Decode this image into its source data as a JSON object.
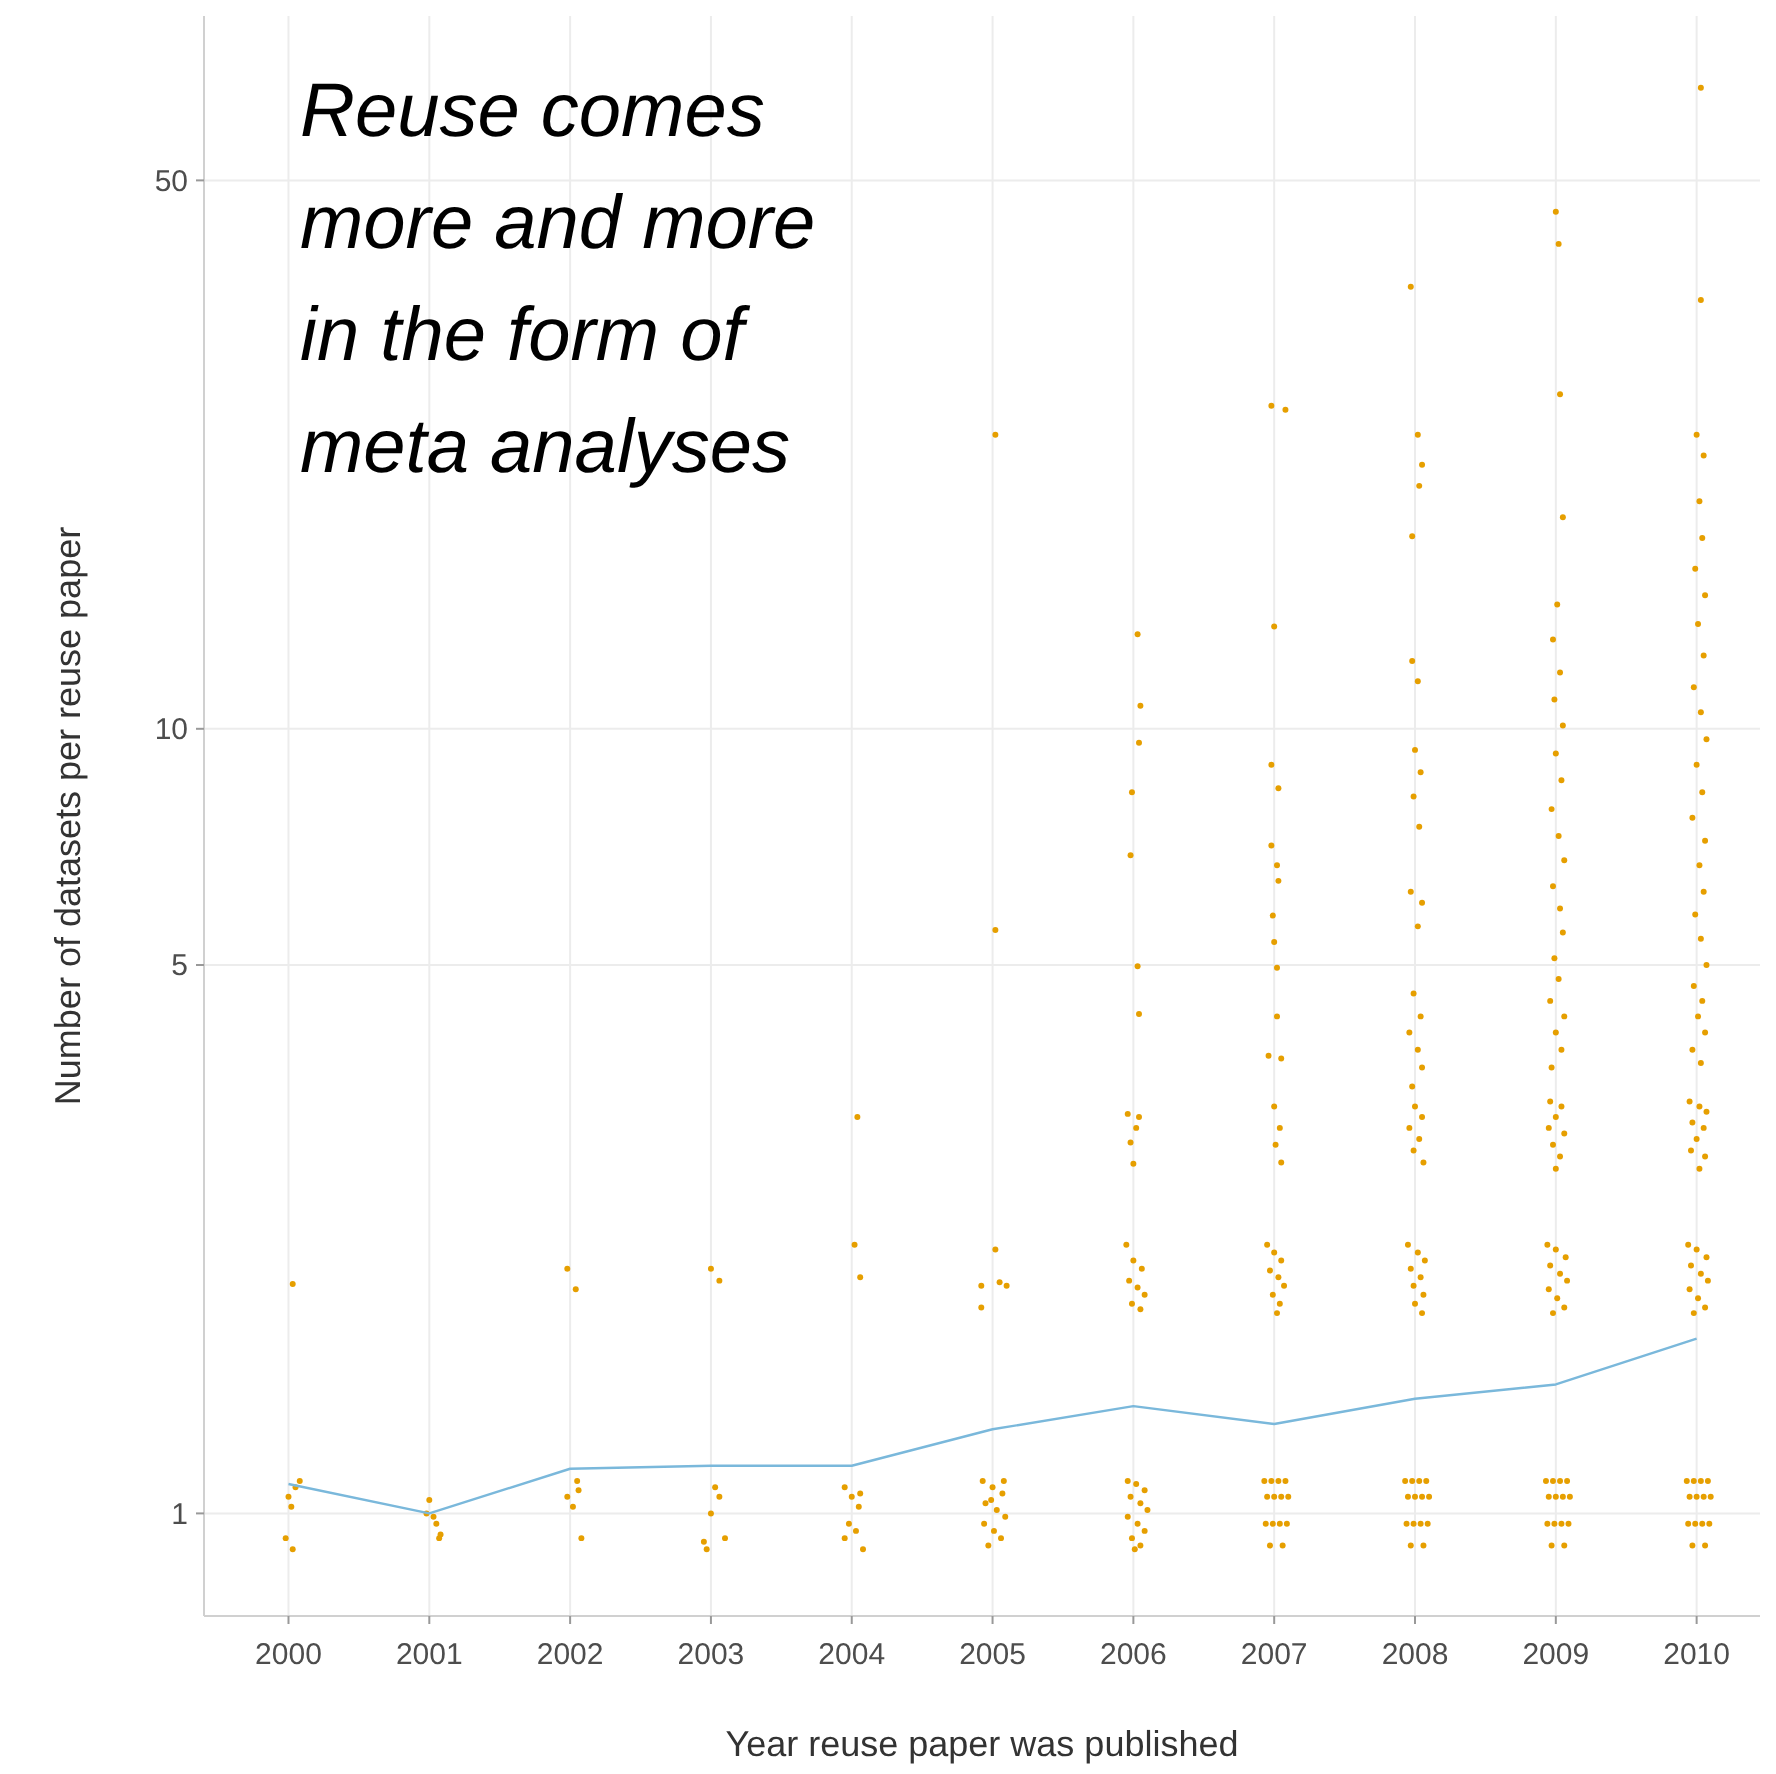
{
  "chart_data": {
    "type": "scatter",
    "xlabel": "Year reuse paper was published",
    "ylabel": "Number of datasets per reuse paper",
    "log": "y",
    "grid": true,
    "xlim": [
      1999.4,
      2010.45
    ],
    "ylim": [
      0.74,
      81
    ],
    "xticks": [
      2000,
      2001,
      2002,
      2003,
      2004,
      2005,
      2006,
      2007,
      2008,
      2009,
      2010
    ],
    "yticks": [
      1,
      5,
      10,
      50
    ],
    "annotations": [
      "Reuse comes more and more in the form of meta analyses"
    ],
    "series": [
      {
        "marker": "circle",
        "color": "#e69f00",
        "x": [
          2000.0,
          2000.05,
          2000.02,
          2000.08,
          1999.98,
          2000.03,
          2000.03,
          2001.0,
          2001.05,
          2001.08,
          2001.03,
          2000.98,
          2001.07,
          2001.98,
          2002.05,
          2002.02,
          2002.08,
          2001.98,
          2002.04,
          2002.06,
          2003.03,
          2003.06,
          2003.0,
          2002.95,
          2002.97,
          2003.1,
          2003.0,
          2003.06,
          2004.04,
          2004.02,
          2004.06,
          2003.95,
          2004.0,
          2004.05,
          2003.98,
          2004.03,
          2003.95,
          2004.08,
          2004.06,
          2005.02,
          2005.02,
          2005.02,
          2004.92,
          2005.1,
          2004.92,
          2005.05,
          2004.93,
          2005.0,
          2005.07,
          2004.95,
          2005.03,
          2005.09,
          2004.94,
          2005.01,
          2005.06,
          2004.97,
          2005.08,
          2004.99,
          2006.03,
          2006.05,
          2006.04,
          2005.99,
          2005.98,
          2006.03,
          2006.04,
          2005.96,
          2006.04,
          2006.02,
          2005.98,
          2006.0,
          2005.95,
          2006.0,
          2006.06,
          2005.97,
          2006.03,
          2006.08,
          2005.99,
          2006.05,
          2005.96,
          2006.02,
          2006.08,
          2005.98,
          2006.05,
          2006.1,
          2005.96,
          2006.03,
          2006.08,
          2005.99,
          2006.05,
          2006.01,
          2006.98,
          2007.08,
          2007.0,
          2006.98,
          2007.03,
          2006.98,
          2007.02,
          2007.03,
          2006.99,
          2007.0,
          2007.02,
          2007.02,
          2006.96,
          2007.05,
          2007.0,
          2007.04,
          2007.01,
          2007.05,
          2006.95,
          2007.0,
          2007.05,
          2006.97,
          2007.03,
          2007.07,
          2006.99,
          2007.04,
          2007.02,
          2006.93,
          2006.98,
          2007.03,
          2007.08,
          2006.95,
          2007.0,
          2007.05,
          2007.1,
          2006.94,
          2006.99,
          2007.04,
          2007.09,
          2006.97,
          2007.06,
          2007.97,
          2008.02,
          2008.05,
          2008.03,
          2007.98,
          2007.98,
          2008.02,
          2008.0,
          2008.04,
          2007.99,
          2008.03,
          2007.97,
          2008.05,
          2008.02,
          2007.99,
          2008.04,
          2007.96,
          2008.02,
          2008.05,
          2007.98,
          2008.0,
          2008.05,
          2007.96,
          2008.03,
          2007.99,
          2008.06,
          2007.95,
          2008.02,
          2008.07,
          2007.97,
          2008.04,
          2007.99,
          2008.06,
          2008.0,
          2008.05,
          2007.93,
          2007.98,
          2008.03,
          2008.08,
          2007.95,
          2008.0,
          2008.05,
          2008.1,
          2007.94,
          2007.99,
          2008.04,
          2008.09,
          2007.97,
          2008.06,
          2009.0,
          2009.02,
          2009.03,
          2009.05,
          2009.01,
          2008.98,
          2009.03,
          2008.99,
          2009.05,
          2009.0,
          2009.04,
          2008.97,
          2009.02,
          2009.06,
          2008.98,
          2009.03,
          2009.05,
          2008.99,
          2009.02,
          2008.96,
          2009.06,
          2009.0,
          2009.04,
          2008.97,
          2008.96,
          2009.04,
          2009.0,
          2008.95,
          2009.06,
          2008.98,
          2009.03,
          2009.0,
          2008.94,
          2009.0,
          2009.07,
          2008.96,
          2009.03,
          2009.08,
          2008.95,
          2009.01,
          2009.06,
          2008.98,
          2008.93,
          2008.98,
          2009.03,
          2009.08,
          2008.95,
          2009.0,
          2009.05,
          2009.1,
          2008.94,
          2008.99,
          2009.04,
          2009.09,
          2008.97,
          2009.06,
          2010.03,
          2010.03,
          2010.0,
          2010.05,
          2010.02,
          2010.04,
          2009.99,
          2010.06,
          2010.01,
          2010.05,
          2009.98,
          2010.03,
          2010.07,
          2010.0,
          2010.04,
          2009.97,
          2010.06,
          2010.02,
          2010.05,
          2009.99,
          2010.03,
          2010.07,
          2009.98,
          2010.04,
          2010.01,
          2010.06,
          2009.97,
          2010.03,
          2009.95,
          2010.02,
          2010.07,
          2009.97,
          2010.05,
          2010.0,
          2009.96,
          2010.06,
          2010.02,
          2009.94,
          2010.0,
          2010.07,
          2009.96,
          2010.03,
          2010.08,
          2009.95,
          2010.01,
          2010.06,
          2009.98,
          2009.93,
          2009.98,
          2010.03,
          2010.08,
          2009.95,
          2010.0,
          2010.05,
          2010.1,
          2009.94,
          2009.99,
          2010.04,
          2010.09,
          2009.97,
          2010.06
        ],
        "values": [
          1.05,
          1.08,
          1.02,
          1.1,
          0.93,
          0.9,
          1.96,
          1.04,
          0.97,
          0.94,
          0.99,
          1.0,
          0.93,
          1.05,
          1.1,
          1.02,
          0.93,
          2.05,
          1.93,
          1.07,
          1.08,
          1.05,
          1.0,
          0.92,
          0.9,
          0.93,
          2.05,
          1.98,
          3.2,
          2.2,
          2.0,
          1.08,
          1.05,
          1.02,
          0.97,
          0.95,
          0.93,
          0.9,
          1.06,
          23.7,
          5.54,
          2.17,
          1.95,
          1.95,
          1.83,
          1.97,
          1.1,
          1.08,
          1.06,
          1.03,
          1.01,
          0.99,
          0.97,
          0.95,
          0.93,
          0.91,
          1.1,
          1.04,
          13.2,
          10.7,
          9.6,
          8.3,
          6.9,
          4.98,
          4.33,
          3.23,
          3.2,
          3.1,
          2.97,
          2.79,
          2.2,
          2.1,
          2.05,
          1.98,
          1.94,
          1.9,
          1.85,
          1.82,
          1.1,
          1.09,
          1.07,
          1.05,
          1.03,
          1.01,
          0.99,
          0.97,
          0.95,
          0.93,
          0.91,
          0.9,
          25.8,
          25.5,
          13.5,
          9.0,
          8.4,
          7.1,
          6.7,
          6.4,
          5.78,
          5.35,
          4.96,
          4.3,
          3.83,
          3.8,
          3.3,
          3.1,
          2.95,
          2.8,
          2.2,
          2.15,
          2.1,
          2.04,
          2.0,
          1.95,
          1.9,
          1.85,
          1.8,
          1.1,
          1.1,
          1.1,
          1.1,
          1.05,
          1.05,
          1.05,
          1.05,
          0.97,
          0.97,
          0.97,
          0.97,
          0.91,
          0.91,
          36.6,
          23.7,
          21.7,
          20.4,
          17.6,
          12.2,
          11.5,
          9.4,
          8.8,
          8.2,
          7.5,
          6.2,
          6.0,
          5.6,
          4.6,
          4.3,
          4.1,
          3.9,
          3.7,
          3.5,
          3.3,
          3.2,
          3.1,
          3.0,
          2.9,
          2.8,
          2.2,
          2.15,
          2.1,
          2.05,
          2.0,
          1.95,
          1.9,
          1.85,
          1.8,
          1.1,
          1.1,
          1.1,
          1.1,
          1.05,
          1.05,
          1.05,
          1.05,
          0.97,
          0.97,
          0.97,
          0.97,
          0.91,
          0.91,
          45.6,
          41.5,
          26.7,
          18.6,
          14.4,
          13.0,
          11.8,
          10.9,
          10.1,
          9.3,
          8.6,
          7.9,
          7.3,
          6.8,
          6.3,
          5.9,
          5.5,
          5.1,
          4.8,
          4.5,
          4.3,
          4.1,
          3.9,
          3.7,
          3.35,
          3.3,
          3.2,
          3.1,
          3.05,
          2.95,
          2.85,
          2.75,
          2.2,
          2.17,
          2.12,
          2.07,
          2.02,
          1.98,
          1.93,
          1.88,
          1.83,
          1.8,
          1.1,
          1.1,
          1.1,
          1.1,
          1.05,
          1.05,
          1.05,
          1.05,
          0.97,
          0.97,
          0.97,
          0.97,
          0.91,
          0.91,
          65.6,
          35.2,
          23.7,
          22.3,
          19.5,
          17.5,
          16.0,
          14.8,
          13.6,
          12.4,
          11.3,
          10.5,
          9.7,
          9.0,
          8.3,
          7.7,
          7.2,
          6.7,
          6.2,
          5.8,
          5.4,
          5.0,
          4.7,
          4.5,
          4.3,
          4.1,
          3.9,
          3.75,
          3.35,
          3.3,
          3.25,
          3.15,
          3.1,
          3.0,
          2.9,
          2.85,
          2.75,
          2.2,
          2.17,
          2.12,
          2.07,
          2.02,
          1.98,
          1.93,
          1.88,
          1.83,
          1.8,
          1.1,
          1.1,
          1.1,
          1.1,
          1.05,
          1.05,
          1.05,
          1.05,
          0.97,
          0.97,
          0.97,
          0.97,
          0.91,
          0.91
        ]
      },
      {
        "type": "line",
        "color": "#7ab8db",
        "x": [
          2000,
          2001,
          2002,
          2003,
          2004,
          2005,
          2006,
          2007,
          2008,
          2009,
          2010
        ],
        "values": [
          1.09,
          1.0,
          1.14,
          1.15,
          1.15,
          1.28,
          1.37,
          1.3,
          1.4,
          1.46,
          1.67
        ]
      }
    ]
  }
}
